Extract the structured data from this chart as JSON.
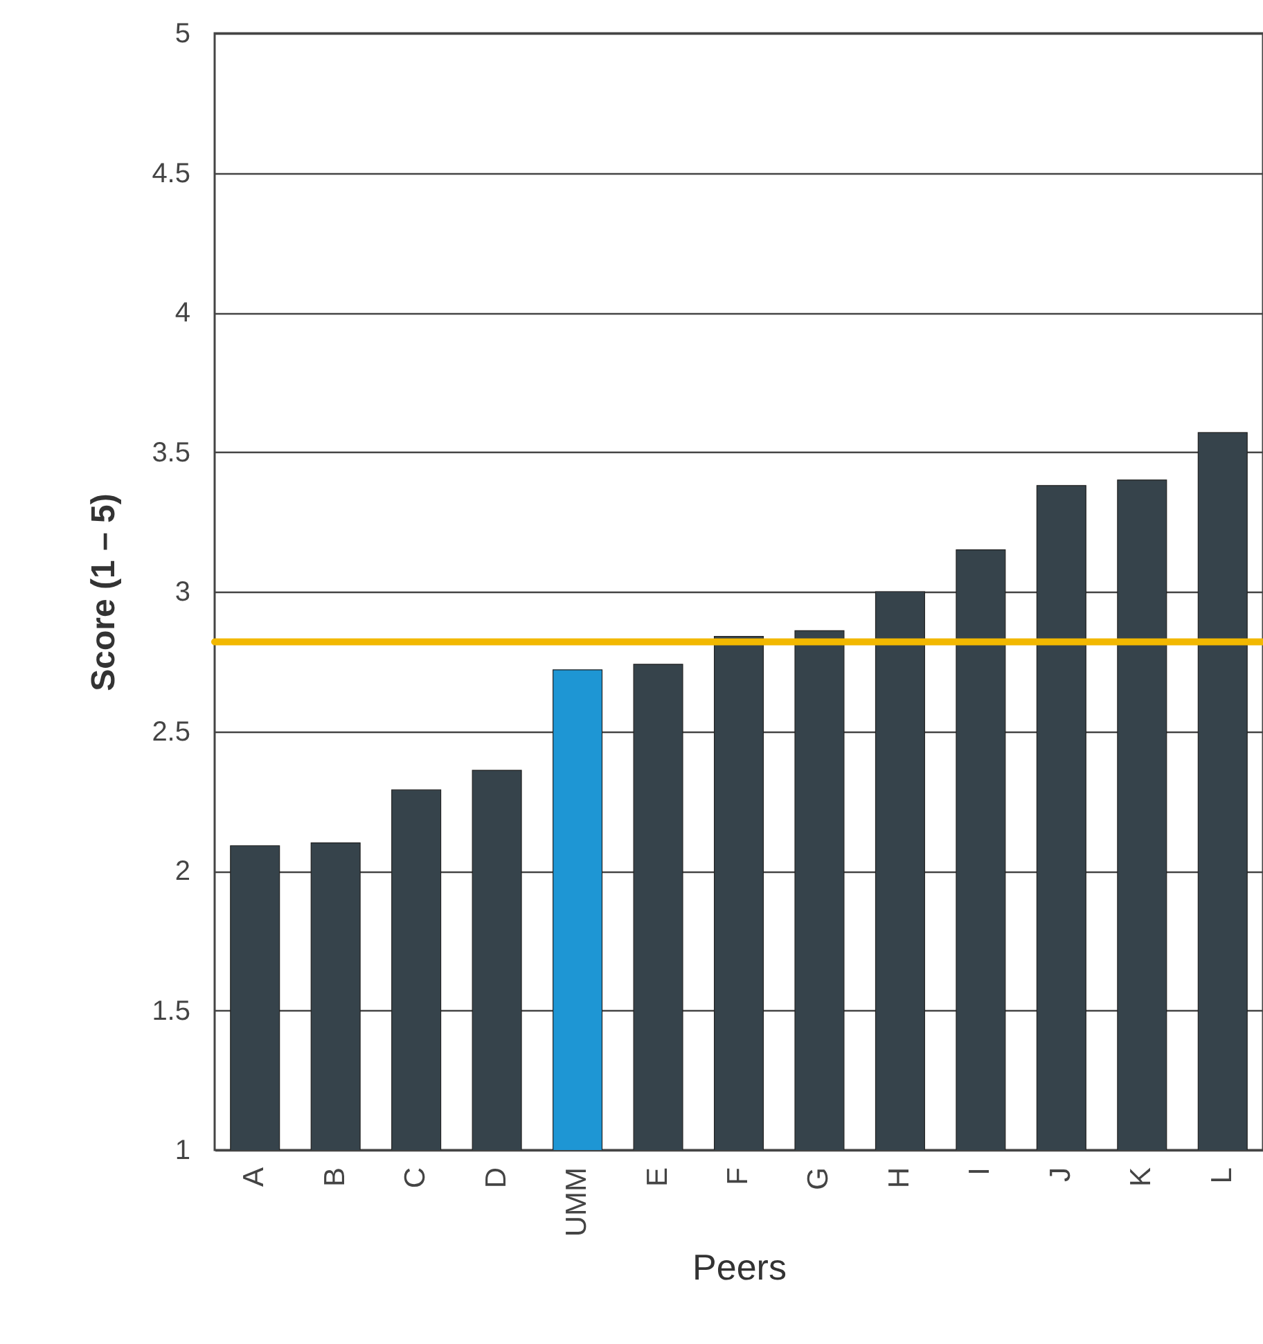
{
  "chart_data": {
    "type": "bar",
    "xlabel": "Peers",
    "ylabel": "Score (1 – 5)",
    "categories": [
      "A",
      "B",
      "C",
      "D",
      "UMM",
      "E",
      "F",
      "G",
      "H",
      "I",
      "J",
      "K",
      "L"
    ],
    "values": [
      2.09,
      2.1,
      2.29,
      2.36,
      2.72,
      2.74,
      2.84,
      2.86,
      3.0,
      3.15,
      3.38,
      3.4,
      3.57
    ],
    "colors": [
      "#36434b",
      "#36434b",
      "#36434b",
      "#36434b",
      "#1e96d4",
      "#36434b",
      "#36434b",
      "#36434b",
      "#36434b",
      "#36434b",
      "#36434b",
      "#36434b",
      "#36434b"
    ],
    "ylim": [
      1,
      5
    ],
    "yticks": [
      1,
      1.5,
      2,
      2.5,
      3,
      3.5,
      4,
      4.5,
      5
    ],
    "grid": "y",
    "ref_lines": [
      {
        "axis": "y",
        "value": 2.82,
        "color": "#f2b800"
      }
    ]
  }
}
